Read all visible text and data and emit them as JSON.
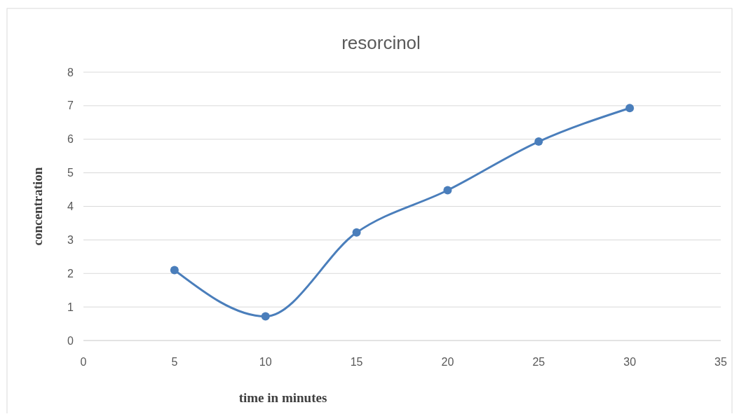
{
  "chart_data": {
    "type": "line",
    "title": "resorcinol",
    "xlabel": "time in minutes",
    "ylabel": "concentration",
    "x": [
      5,
      10,
      15,
      20,
      25,
      30
    ],
    "series": [
      {
        "color": "#4a7ebb",
        "values": [
          2.1,
          0.72,
          3.22,
          4.48,
          5.93,
          6.93
        ]
      }
    ],
    "xlim": [
      0,
      35
    ],
    "xticks": [
      0,
      5,
      10,
      15,
      20,
      25,
      30,
      35
    ],
    "ylim": [
      0,
      8
    ],
    "yticks": [
      0,
      1,
      2,
      3,
      4,
      5,
      6,
      7,
      8
    ],
    "grid": "y",
    "marker": "circle",
    "line_style": "solid"
  }
}
